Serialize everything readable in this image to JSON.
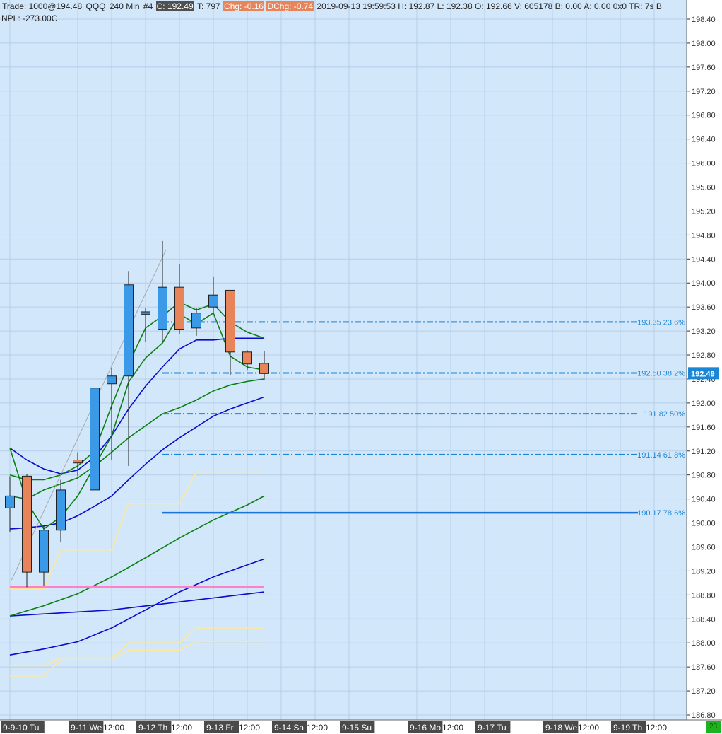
{
  "header": {
    "trade": "Trade: 1000@194.48",
    "symbol": "QQQ",
    "interval": "240 Min",
    "bar_no": "#4",
    "close": "C: 192.49",
    "ticks": "T: 797",
    "chg": "Chg: -0.16",
    "dchg": "DChg: -0.74",
    "rest": "2019-09-13 19:59:53 H: 192.87 L: 192.38 O: 192.66 V: 605178 B: 0.00 A: 0.00 0x0 TR: 7s B",
    "npl": "NPL: -273.00C"
  },
  "corner_badge": "23",
  "chart_data": {
    "type": "candlestick",
    "symbol": "QQQ",
    "y_axis": {
      "range": [
        186.8,
        198.4
      ],
      "ticks": [
        "198.40",
        "198.00",
        "197.60",
        "197.20",
        "196.80",
        "196.40",
        "196.00",
        "195.60",
        "195.20",
        "194.80",
        "194.40",
        "194.00",
        "193.60",
        "193.20",
        "192.80",
        "192.40",
        "192.00",
        "191.60",
        "191.20",
        "190.80",
        "190.40",
        "190.00",
        "189.60",
        "189.20",
        "188.80",
        "188.40",
        "188.00",
        "187.60",
        "187.20",
        "186.80"
      ]
    },
    "x_axis": {
      "labels": [
        {
          "t": 0,
          "text": "9-9-10 Tu",
          "dark": true
        },
        {
          "t": 4,
          "text": "9-11 We",
          "dark": true
        },
        {
          "t": 6,
          "text": "12:00",
          "dark": false
        },
        {
          "t": 8,
          "text": "9-12 Th",
          "dark": true
        },
        {
          "t": 10,
          "text": "12:00",
          "dark": false
        },
        {
          "t": 12,
          "text": "9-13 Fr",
          "dark": true
        },
        {
          "t": 14,
          "text": "12:00",
          "dark": false
        },
        {
          "t": 16,
          "text": "9-14 Sa",
          "dark": true
        },
        {
          "t": 18,
          "text": "12:00",
          "dark": false
        },
        {
          "t": 20,
          "text": "9-15 Su",
          "dark": true
        },
        {
          "t": 24,
          "text": "9-16 Mo",
          "dark": true
        },
        {
          "t": 26,
          "text": "12:00",
          "dark": false
        },
        {
          "t": 28,
          "text": "9-17 Tu",
          "dark": true
        },
        {
          "t": 32,
          "text": "9-18 We",
          "dark": true
        },
        {
          "t": 34,
          "text": "12:00",
          "dark": false
        },
        {
          "t": 36,
          "text": "9-19 Th",
          "dark": true
        },
        {
          "t": 38,
          "text": "12:00",
          "dark": false
        }
      ]
    },
    "candles": [
      {
        "t": 0.0,
        "o": 190.25,
        "h": 190.78,
        "l": 189.85,
        "c": 190.45
      },
      {
        "t": 1.0,
        "o": 190.78,
        "h": 190.82,
        "l": 188.93,
        "c": 189.18
      },
      {
        "t": 2.0,
        "o": 189.18,
        "h": 189.95,
        "l": 188.95,
        "c": 189.88
      },
      {
        "t": 3.0,
        "o": 189.88,
        "h": 190.72,
        "l": 189.68,
        "c": 190.55
      },
      {
        "t": 4.0,
        "o": 191.05,
        "h": 191.18,
        "l": 190.78,
        "c": 191.0
      },
      {
        "t": 5.0,
        "o": 190.55,
        "h": 192.25,
        "l": 190.55,
        "c": 192.25
      },
      {
        "t": 6.0,
        "o": 192.32,
        "h": 192.58,
        "l": 191.05,
        "c": 192.45
      },
      {
        "t": 7.0,
        "o": 192.45,
        "h": 194.2,
        "l": 190.95,
        "c": 193.97
      },
      {
        "t": 8.0,
        "o": 193.48,
        "h": 193.58,
        "l": 193.02,
        "c": 193.52
      },
      {
        "t": 9.0,
        "o": 193.23,
        "h": 194.7,
        "l": 193.02,
        "c": 193.93
      },
      {
        "t": 10.0,
        "o": 193.93,
        "h": 194.32,
        "l": 193.15,
        "c": 193.23
      },
      {
        "t": 11.0,
        "o": 193.25,
        "h": 193.58,
        "l": 193.12,
        "c": 193.5
      },
      {
        "t": 12.0,
        "o": 193.6,
        "h": 194.1,
        "l": 193.5,
        "c": 193.8
      },
      {
        "t": 13.0,
        "o": 193.88,
        "h": 193.88,
        "l": 192.47,
        "c": 192.85
      },
      {
        "t": 14.0,
        "o": 192.85,
        "h": 192.88,
        "l": 192.55,
        "c": 192.65
      },
      {
        "t": 15.0,
        "o": 192.66,
        "h": 192.87,
        "l": 192.38,
        "c": 192.49
      }
    ],
    "trade_marker": {
      "price": 194.48,
      "qty": 1000
    },
    "fib_levels": [
      {
        "price": 193.35,
        "label": "193.35 23.6%",
        "style": "dashdot"
      },
      {
        "price": 192.5,
        "label": "192.50 38.2%",
        "style": "dashdot"
      },
      {
        "price": 191.82,
        "label": "191.82 50%",
        "style": "dashdot"
      },
      {
        "price": 191.14,
        "label": "191.14 61.8%",
        "style": "dashdot"
      },
      {
        "price": 190.17,
        "label": "190.17 78.6%",
        "style": "solid"
      }
    ],
    "last_price": "192.49",
    "indicator_lines": [
      {
        "color": "#0a0ad0",
        "points": [
          [
            0,
            191.25
          ],
          [
            1,
            191.05
          ],
          [
            2,
            190.9
          ],
          [
            3,
            190.82
          ],
          [
            4,
            190.88
          ],
          [
            5,
            191.1
          ],
          [
            6,
            191.45
          ],
          [
            7,
            191.9
          ],
          [
            8,
            192.28
          ],
          [
            9,
            192.6
          ],
          [
            10,
            192.9
          ],
          [
            11,
            193.05
          ],
          [
            12,
            193.05
          ],
          [
            13,
            193.08
          ],
          [
            14,
            193.08
          ],
          [
            15,
            193.08
          ]
        ]
      },
      {
        "color": "#0a0ad0",
        "points": [
          [
            0,
            189.9
          ],
          [
            1,
            189.92
          ],
          [
            2,
            189.95
          ],
          [
            3,
            190.0
          ],
          [
            4,
            190.12
          ],
          [
            5,
            190.28
          ],
          [
            6,
            190.45
          ],
          [
            7,
            190.72
          ],
          [
            8,
            190.98
          ],
          [
            9,
            191.22
          ],
          [
            10,
            191.42
          ],
          [
            11,
            191.6
          ],
          [
            12,
            191.78
          ],
          [
            13,
            191.9
          ],
          [
            14,
            192.0
          ],
          [
            15,
            192.1
          ]
        ]
      },
      {
        "color": "#0a0ad0",
        "points": [
          [
            0,
            187.8
          ],
          [
            2,
            187.9
          ],
          [
            4,
            188.02
          ],
          [
            6,
            188.25
          ],
          [
            8,
            188.55
          ],
          [
            10,
            188.85
          ],
          [
            12,
            189.1
          ],
          [
            14,
            189.3
          ],
          [
            15,
            189.4
          ]
        ]
      },
      {
        "color": "#0a0ad0",
        "points": [
          [
            0,
            188.45
          ],
          [
            3,
            188.5
          ],
          [
            6,
            188.55
          ],
          [
            9,
            188.65
          ],
          [
            12,
            188.75
          ],
          [
            15,
            188.85
          ]
        ]
      },
      {
        "color": "#0a8010",
        "points": [
          [
            0,
            190.8
          ],
          [
            1,
            190.72
          ],
          [
            2,
            190.72
          ],
          [
            3,
            190.8
          ],
          [
            4,
            190.95
          ],
          [
            5,
            191.2
          ],
          [
            6,
            191.95
          ],
          [
            7,
            192.65
          ],
          [
            8,
            193.25
          ],
          [
            9,
            193.45
          ],
          [
            10,
            193.68
          ],
          [
            11,
            193.55
          ],
          [
            12,
            193.65
          ],
          [
            13,
            193.35
          ],
          [
            14,
            193.18
          ],
          [
            15,
            193.08
          ]
        ]
      },
      {
        "color": "#0a8010",
        "points": [
          [
            0,
            191.25
          ],
          [
            1,
            190.35
          ],
          [
            2,
            189.9
          ],
          [
            3,
            190.1
          ],
          [
            4,
            190.45
          ],
          [
            5,
            190.95
          ],
          [
            6,
            191.45
          ],
          [
            7,
            192.35
          ],
          [
            8,
            192.75
          ],
          [
            9,
            193.0
          ],
          [
            10,
            193.48
          ],
          [
            11,
            193.32
          ],
          [
            12,
            193.5
          ],
          [
            13,
            192.78
          ],
          [
            14,
            192.6
          ],
          [
            15,
            192.55
          ]
        ]
      },
      {
        "color": "#0a8010",
        "points": [
          [
            0,
            190.45
          ],
          [
            1,
            190.4
          ],
          [
            2,
            190.55
          ],
          [
            3,
            190.65
          ],
          [
            4,
            190.75
          ],
          [
            5,
            190.95
          ],
          [
            6,
            191.18
          ],
          [
            7,
            191.42
          ],
          [
            8,
            191.62
          ],
          [
            9,
            191.82
          ],
          [
            10,
            191.92
          ],
          [
            11,
            192.05
          ],
          [
            12,
            192.2
          ],
          [
            13,
            192.3
          ],
          [
            14,
            192.36
          ],
          [
            15,
            192.4
          ]
        ]
      },
      {
        "color": "#0a8010",
        "points": [
          [
            0,
            188.45
          ],
          [
            2,
            188.62
          ],
          [
            4,
            188.82
          ],
          [
            6,
            189.1
          ],
          [
            8,
            189.42
          ],
          [
            10,
            189.75
          ],
          [
            12,
            190.05
          ],
          [
            14,
            190.3
          ],
          [
            15,
            190.45
          ]
        ]
      },
      {
        "color": "#ffe79a",
        "points": [
          [
            0,
            188.9
          ],
          [
            2,
            188.9
          ],
          [
            3,
            189.55
          ],
          [
            6,
            189.55
          ],
          [
            7,
            190.32
          ],
          [
            10,
            190.32
          ],
          [
            11,
            190.85
          ],
          [
            15,
            190.85
          ]
        ]
      },
      {
        "color": "#ffe79a",
        "points": [
          [
            0,
            187.62
          ],
          [
            2,
            187.62
          ],
          [
            3,
            187.75
          ],
          [
            6,
            187.75
          ],
          [
            7,
            188.0
          ],
          [
            10,
            188.0
          ],
          [
            11,
            188.25
          ],
          [
            15,
            188.25
          ]
        ]
      },
      {
        "color": "#ffe79a",
        "points": [
          [
            0,
            187.45
          ],
          [
            2,
            187.45
          ],
          [
            3,
            187.72
          ],
          [
            6,
            187.72
          ],
          [
            7,
            187.88
          ],
          [
            10,
            187.88
          ],
          [
            11,
            188.02
          ],
          [
            15,
            188.02
          ]
        ]
      }
    ],
    "pink_level": {
      "price": 188.93,
      "color": "#ff7fc8"
    },
    "trend_line": [
      [
        0.1,
        189.05
      ],
      [
        9.2,
        194.55
      ]
    ],
    "grid": true
  }
}
